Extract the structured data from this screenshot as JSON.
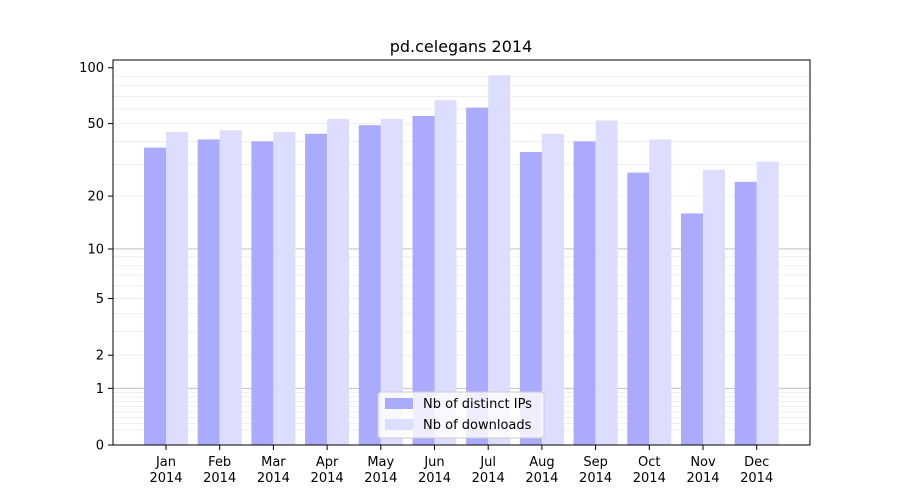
{
  "chart_data": {
    "type": "bar",
    "title": "pd.celegans 2014",
    "xlabel": "",
    "ylabel": "",
    "categories": [
      [
        "Jan",
        "2014"
      ],
      [
        "Feb",
        "2014"
      ],
      [
        "Mar",
        "2014"
      ],
      [
        "Apr",
        "2014"
      ],
      [
        "May",
        "2014"
      ],
      [
        "Jun",
        "2014"
      ],
      [
        "Jul",
        "2014"
      ],
      [
        "Aug",
        "2014"
      ],
      [
        "Sep",
        "2014"
      ],
      [
        "Oct",
        "2014"
      ],
      [
        "Nov",
        "2014"
      ],
      [
        "Dec",
        "2014"
      ]
    ],
    "series": [
      {
        "name": "Nb of distinct IPs",
        "color": "#aaaaff",
        "values": [
          37,
          41,
          40,
          44,
          49,
          55,
          61,
          35,
          40,
          27,
          16,
          24
        ]
      },
      {
        "name": "Nb of downloads",
        "color": "#ddddff",
        "values": [
          45,
          46,
          45,
          53,
          53,
          67,
          91,
          44,
          52,
          41,
          28,
          31
        ]
      }
    ],
    "y_scale": "log(1+y)",
    "ylim": [
      0,
      110
    ],
    "yticks": [
      {
        "value": 0,
        "label": "0"
      },
      {
        "value": 1,
        "label": "1"
      },
      {
        "value": 2,
        "label": "2"
      },
      {
        "value": 5,
        "label": "5"
      },
      {
        "value": 10,
        "label": "10"
      },
      {
        "value": 20,
        "label": "20"
      },
      {
        "value": 50,
        "label": "50"
      },
      {
        "value": 100,
        "label": "100"
      }
    ],
    "major_grid": [
      1,
      10
    ],
    "minor_grid": true,
    "legend_position": "bottom-center"
  }
}
